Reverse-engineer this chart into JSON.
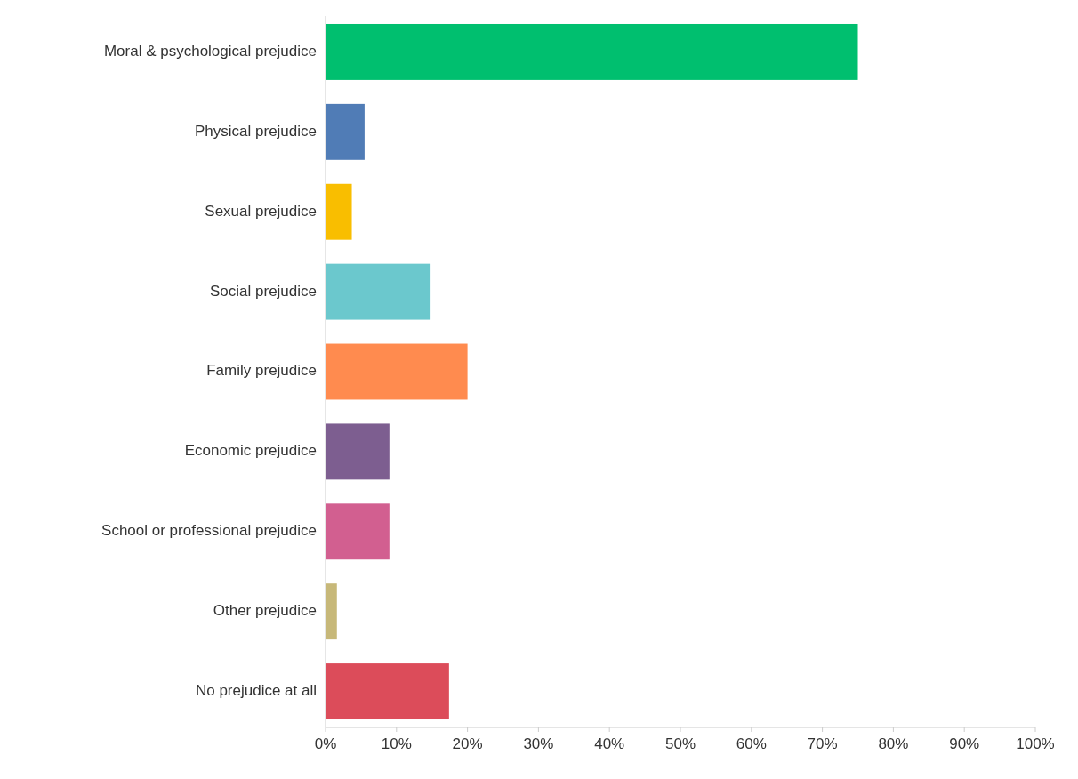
{
  "chart_data": {
    "type": "bar",
    "orientation": "horizontal",
    "categories": [
      "Moral & psychological prejudice",
      "Physical prejudice",
      "Sexual prejudice",
      "Social prejudice",
      "Family prejudice",
      "Economic prejudice",
      "School or professional prejudice",
      "Other prejudice",
      "No prejudice at all"
    ],
    "values": [
      75,
      5.5,
      3.7,
      14.8,
      20,
      9,
      9,
      1.6,
      17.4
    ],
    "colors": [
      "#00bf6f",
      "#507cb6",
      "#f9be00",
      "#6bc8cd",
      "#ff8b4f",
      "#7d5e90",
      "#d25f90",
      "#c7b879",
      "#dc4c5a"
    ],
    "xlim": [
      0,
      100
    ],
    "xticks": [
      {
        "value": 0,
        "label": "0%"
      },
      {
        "value": 10,
        "label": "10%"
      },
      {
        "value": 20,
        "label": "20%"
      },
      {
        "value": 30,
        "label": "30%"
      },
      {
        "value": 40,
        "label": "40%"
      },
      {
        "value": 50,
        "label": "50%"
      },
      {
        "value": 60,
        "label": "60%"
      },
      {
        "value": 70,
        "label": "70%"
      },
      {
        "value": 80,
        "label": "80%"
      },
      {
        "value": 90,
        "label": "90%"
      },
      {
        "value": 100,
        "label": "100%"
      }
    ],
    "grid": false
  }
}
